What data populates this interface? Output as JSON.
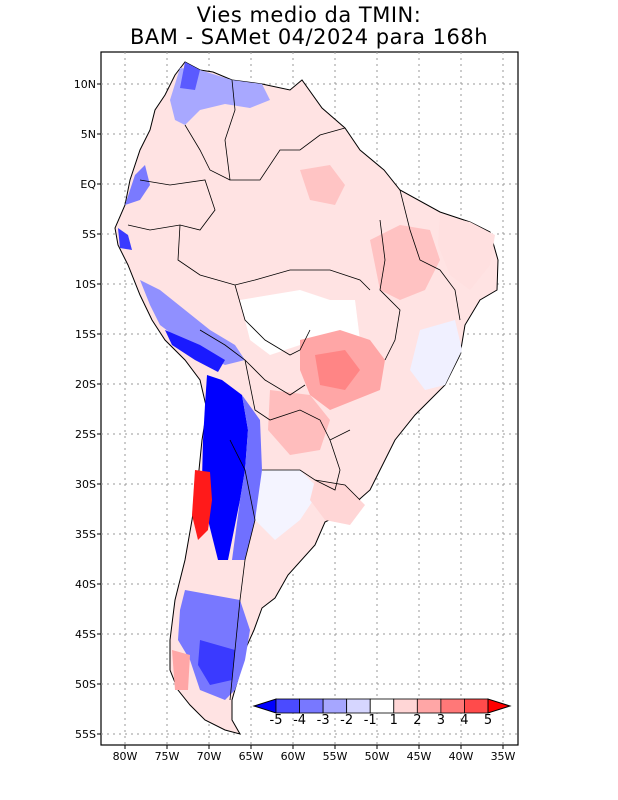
{
  "title_line1": "Vies medio da TMIN:",
  "title_line2": "BAM - SAMet 04/2024  para 168h",
  "map": {
    "lon_range": [
      -84,
      -34
    ],
    "lat_range": [
      -56,
      13
    ],
    "lon_ticks": [
      "80W",
      "75W",
      "70W",
      "65W",
      "60W",
      "55W",
      "50W",
      "45W",
      "40W",
      "35W"
    ],
    "lat_ticks": [
      "10N",
      "5N",
      "EQ",
      "5S",
      "10S",
      "15S",
      "20S",
      "25S",
      "30S",
      "35S",
      "40S",
      "45S",
      "50S",
      "55S"
    ]
  },
  "colorbar": {
    "labels": [
      "-5",
      "-4",
      "-3",
      "-2",
      "-1",
      "1",
      "2",
      "3",
      "4",
      "5"
    ],
    "colors": [
      "#0000ff",
      "#4b4bff",
      "#7878ff",
      "#a6a6ff",
      "#d6d6ff",
      "#ffffff",
      "#ffd6d6",
      "#ffa6a6",
      "#ff7878",
      "#ff4b4b",
      "#ff0000"
    ]
  }
}
